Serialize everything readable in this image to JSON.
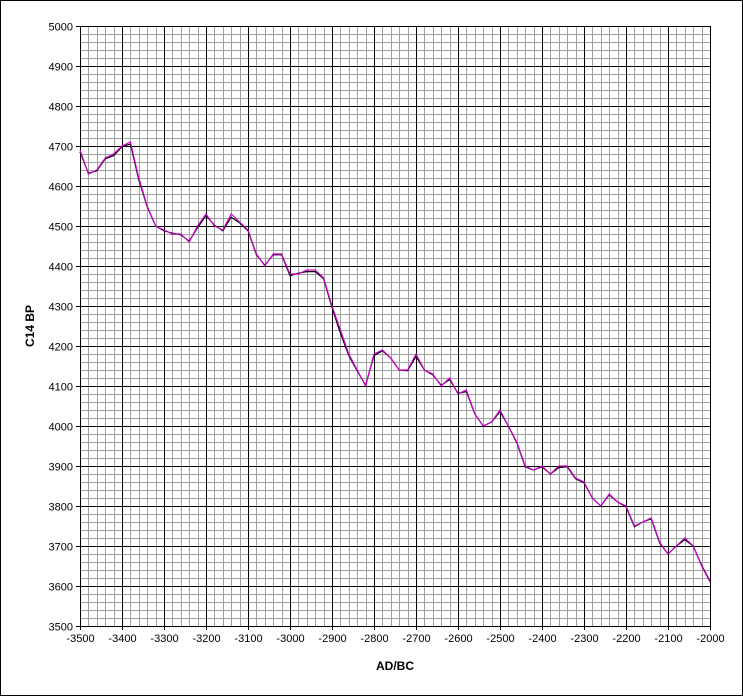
{
  "chart_data": {
    "type": "line",
    "x_label": "AD/BC",
    "y_label": "C14 BP",
    "x": [
      -3500,
      -3480,
      -3460,
      -3440,
      -3420,
      -3400,
      -3380,
      -3360,
      -3340,
      -3320,
      -3300,
      -3280,
      -3260,
      -3240,
      -3220,
      -3200,
      -3180,
      -3160,
      -3140,
      -3120,
      -3100,
      -3080,
      -3060,
      -3040,
      -3020,
      -3000,
      -2980,
      -2960,
      -2940,
      -2920,
      -2900,
      -2880,
      -2860,
      -2840,
      -2820,
      -2800,
      -2780,
      -2760,
      -2740,
      -2720,
      -2700,
      -2680,
      -2660,
      -2640,
      -2620,
      -2600,
      -2580,
      -2560,
      -2540,
      -2520,
      -2500,
      -2480,
      -2460,
      -2440,
      -2420,
      -2400,
      -2380,
      -2360,
      -2340,
      -2320,
      -2300,
      -2280,
      -2260,
      -2240,
      -2220,
      -2200,
      -2180,
      -2160,
      -2140,
      -2120,
      -2100,
      -2080,
      -2060,
      -2040,
      -2020,
      -2000
    ],
    "series": [
      {
        "color": "#000000",
        "values": [
          4685,
          4632,
          4638,
          4668,
          4676,
          4698,
          4705,
          4615,
          4548,
          4500,
          4488,
          4482,
          4478,
          4462,
          4496,
          4526,
          4502,
          4488,
          4522,
          4508,
          4488,
          4428,
          4402,
          4428,
          4428,
          4376,
          4382,
          4386,
          4386,
          4368,
          4296,
          4232,
          4176,
          4138,
          4102,
          4176,
          4188,
          4170,
          4140,
          4138,
          4174,
          4140,
          4128,
          4102,
          4116,
          4082,
          4086,
          4030,
          4000,
          4010,
          4036,
          4000,
          3958,
          3898,
          3890,
          3898,
          3880,
          3896,
          3898,
          3868,
          3858,
          3820,
          3800,
          3828,
          3810,
          3798,
          3748,
          3760,
          3768,
          3708,
          3680,
          3700,
          3716,
          3700,
          3652,
          3612
        ]
      },
      {
        "color": "#cc00cc",
        "values": [
          4690,
          4630,
          4640,
          4670,
          4680,
          4700,
          4710,
          4620,
          4550,
          4500,
          4490,
          4480,
          4480,
          4460,
          4500,
          4530,
          4500,
          4490,
          4530,
          4510,
          4490,
          4430,
          4400,
          4430,
          4430,
          4380,
          4380,
          4390,
          4390,
          4370,
          4300,
          4240,
          4180,
          4140,
          4100,
          4180,
          4190,
          4170,
          4140,
          4140,
          4180,
          4140,
          4130,
          4100,
          4120,
          4080,
          4090,
          4030,
          4000,
          4010,
          4040,
          4000,
          3960,
          3900,
          3890,
          3900,
          3880,
          3900,
          3900,
          3870,
          3860,
          3820,
          3800,
          3830,
          3810,
          3800,
          3750,
          3760,
          3770,
          3710,
          3680,
          3700,
          3720,
          3700,
          3650,
          3610
        ]
      }
    ],
    "xlim": [
      -3500,
      -2000
    ],
    "xticks": [
      -3500,
      -3400,
      -3300,
      -3200,
      -3100,
      -3000,
      -2900,
      -2800,
      -2700,
      -2600,
      -2500,
      -2400,
      -2300,
      -2200,
      -2100,
      -2000
    ],
    "ylim": [
      3500,
      5000
    ],
    "yticks": [
      3500,
      3600,
      3700,
      3800,
      3900,
      4000,
      4100,
      4200,
      4300,
      4400,
      4500,
      4600,
      4700,
      4800,
      4900,
      5000
    ],
    "grid": true,
    "minor_grid": {
      "x": 20,
      "y": 20
    }
  }
}
